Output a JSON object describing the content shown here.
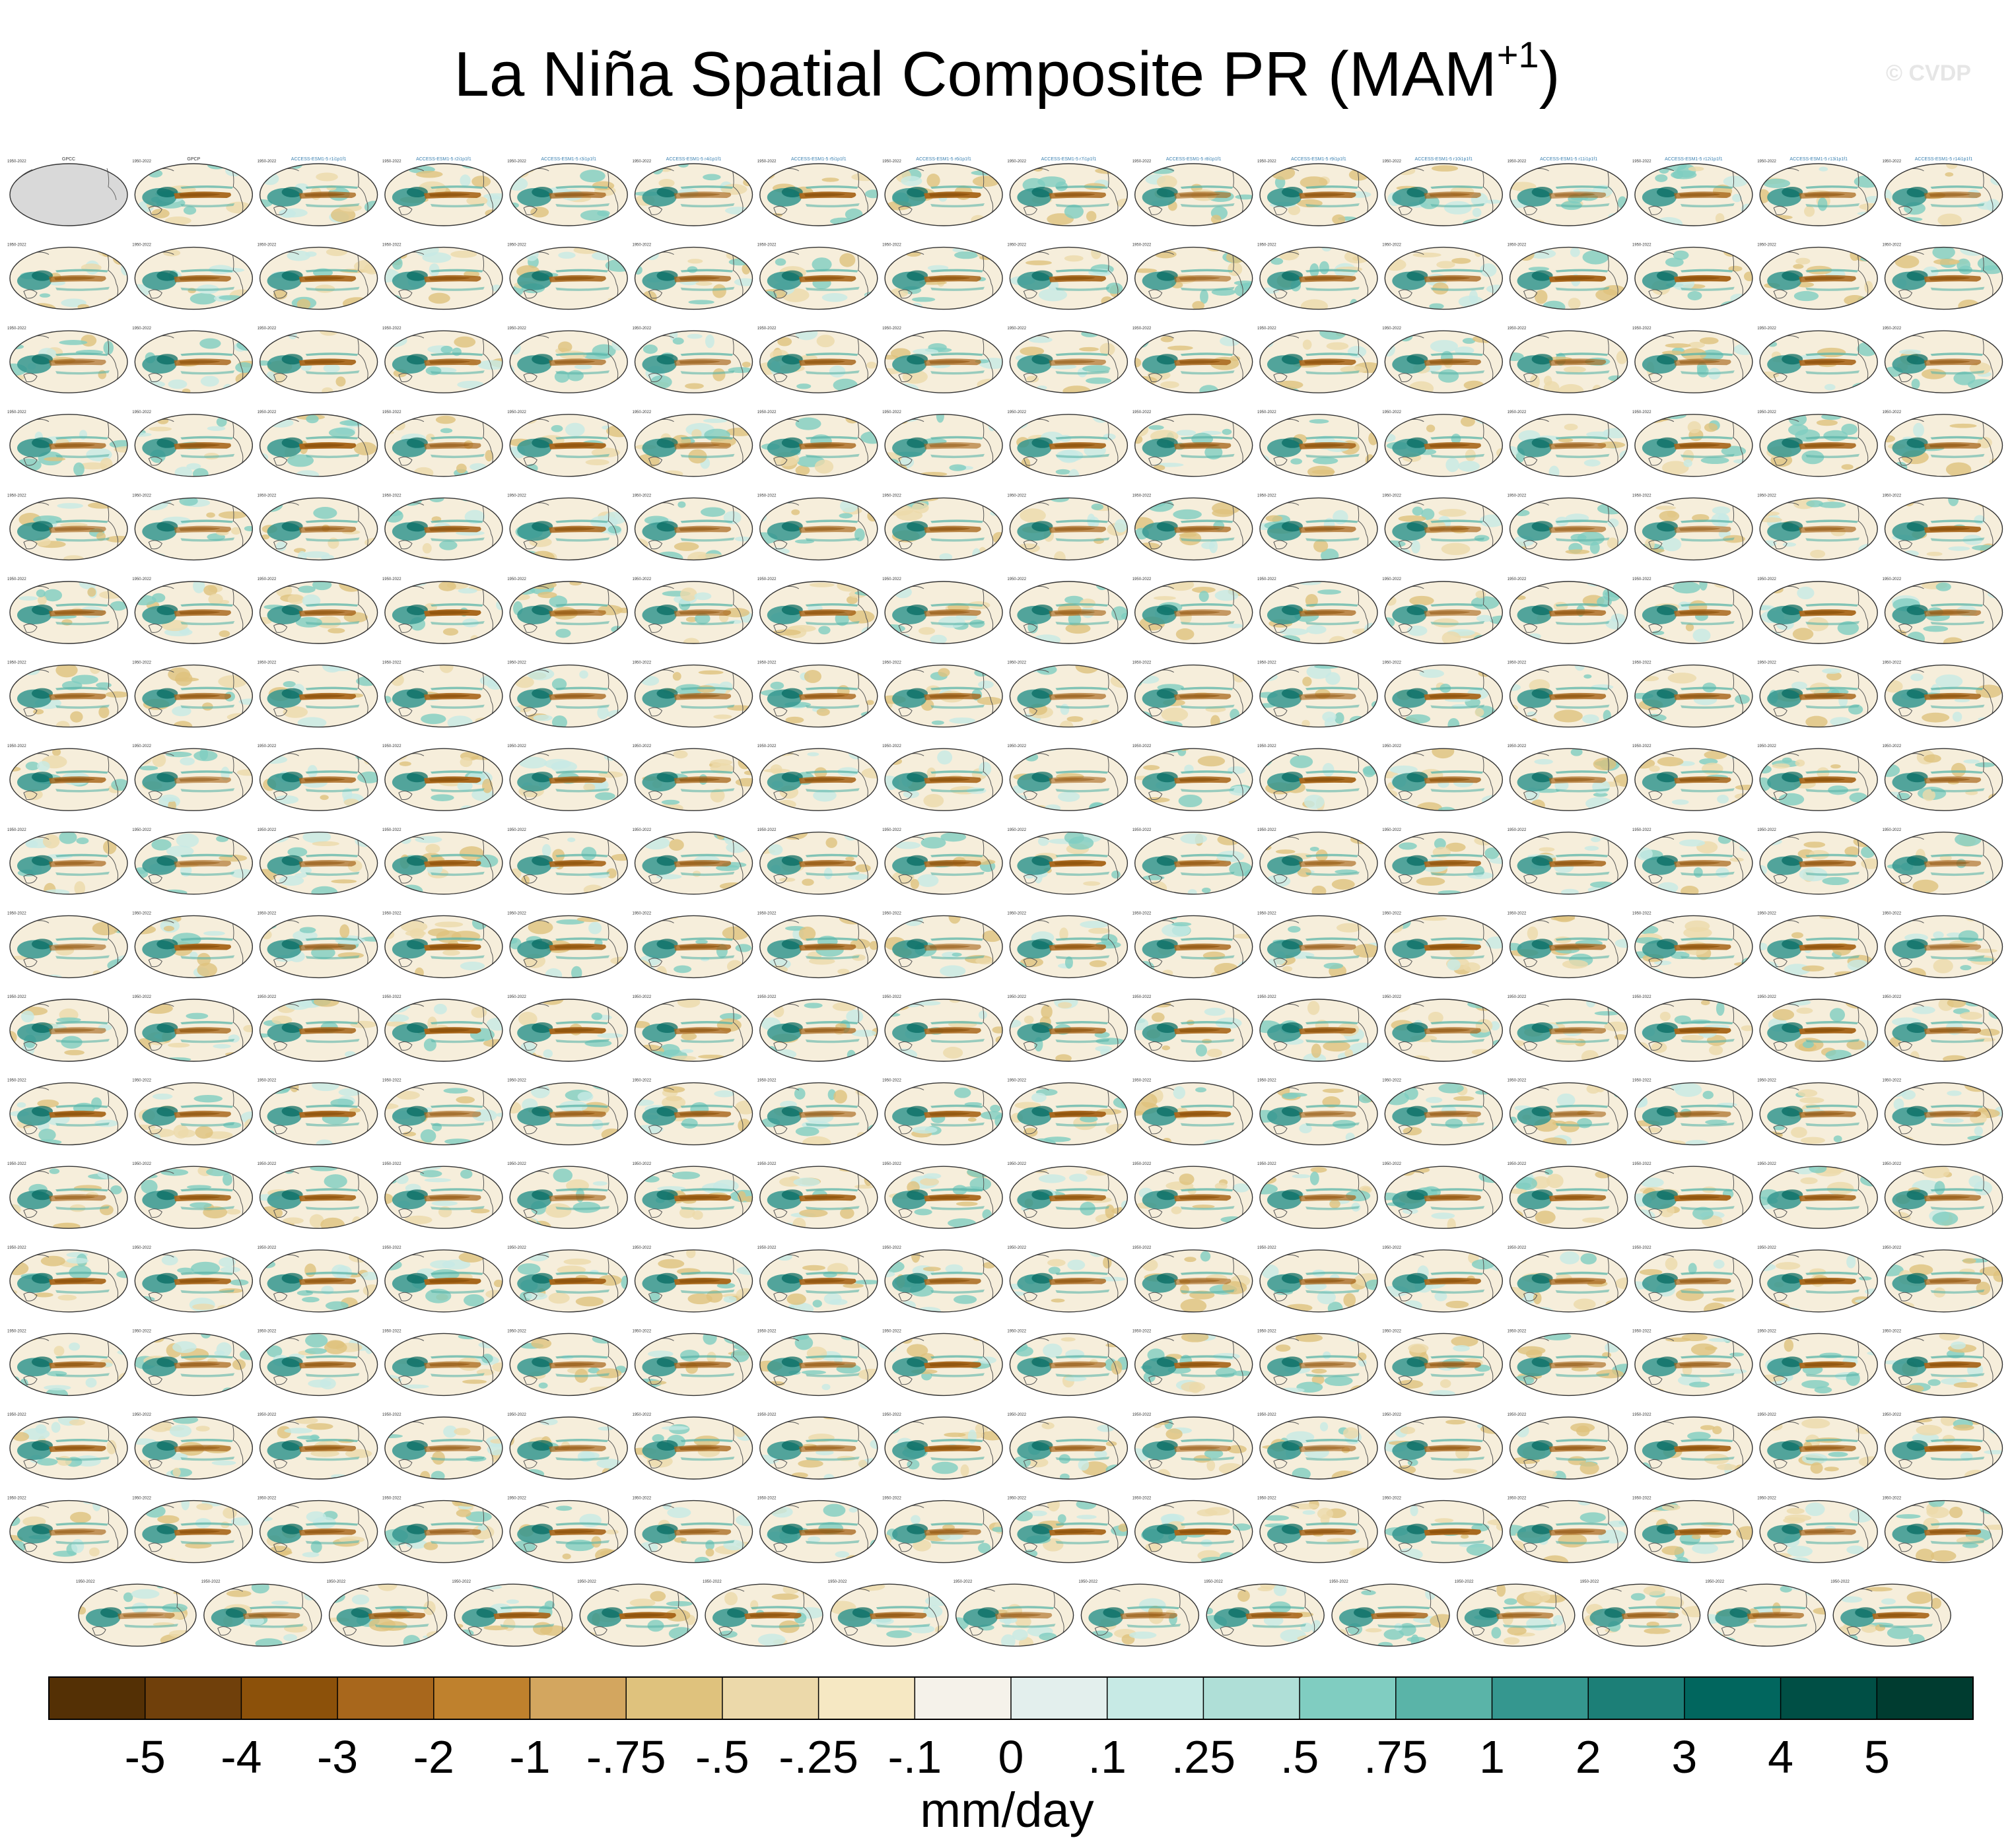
{
  "title": {
    "main": "La Niña Spatial Composite PR (MAM",
    "sup": "+1",
    "close": ")"
  },
  "watermark": "© CVDP",
  "chart_data": {
    "type": "heatmap",
    "layout": {
      "rows": 18,
      "columns": 16,
      "last_row_columns": 15
    },
    "first_row_titles": [
      "GPCC",
      "GPCP",
      "ACCESS-ESM1-5 r1i1p1f1",
      "ACCESS-ESM1-5 r2i1p1f1",
      "ACCESS-ESM1-5 r3i1p1f1",
      "ACCESS-ESM1-5 r4i1p1f1",
      "ACCESS-ESM1-5 r5i1p1f1",
      "ACCESS-ESM1-5 r6i1p1f1",
      "ACCESS-ESM1-5 r7i1p1f1",
      "ACCESS-ESM1-5 r8i1p1f1",
      "ACCESS-ESM1-5 r9i1p1f1",
      "ACCESS-ESM1-5 r10i1p1f1",
      "ACCESS-ESM1-5 r11i1p1f1",
      "ACCESS-ESM1-5 r12i1p1f1",
      "ACCESS-ESM1-5 r13i1p1f1",
      "ACCESS-ESM1-5 r14i1p1f1"
    ],
    "panel_years": "1950-2022",
    "colorbar": {
      "colors": [
        "#543005",
        "#70400b",
        "#8c510a",
        "#a8671c",
        "#bf812d",
        "#d3a65f",
        "#dfc27d",
        "#ecd9aa",
        "#f6e8c3",
        "#f5f2ea",
        "#e3efed",
        "#c7eae5",
        "#afdfd7",
        "#80cdc1",
        "#5ab4a8",
        "#35978f",
        "#1c7f77",
        "#01665e",
        "#004f45",
        "#003c30"
      ],
      "tick_labels": [
        "-5",
        "-4",
        "-3",
        "-2",
        "-1",
        "-.75",
        "-.5",
        "-.25",
        "-.1",
        "0",
        ".1",
        ".25",
        ".5",
        ".75",
        "1",
        "2",
        "3",
        "4",
        "5"
      ],
      "units": "mm/day"
    }
  }
}
